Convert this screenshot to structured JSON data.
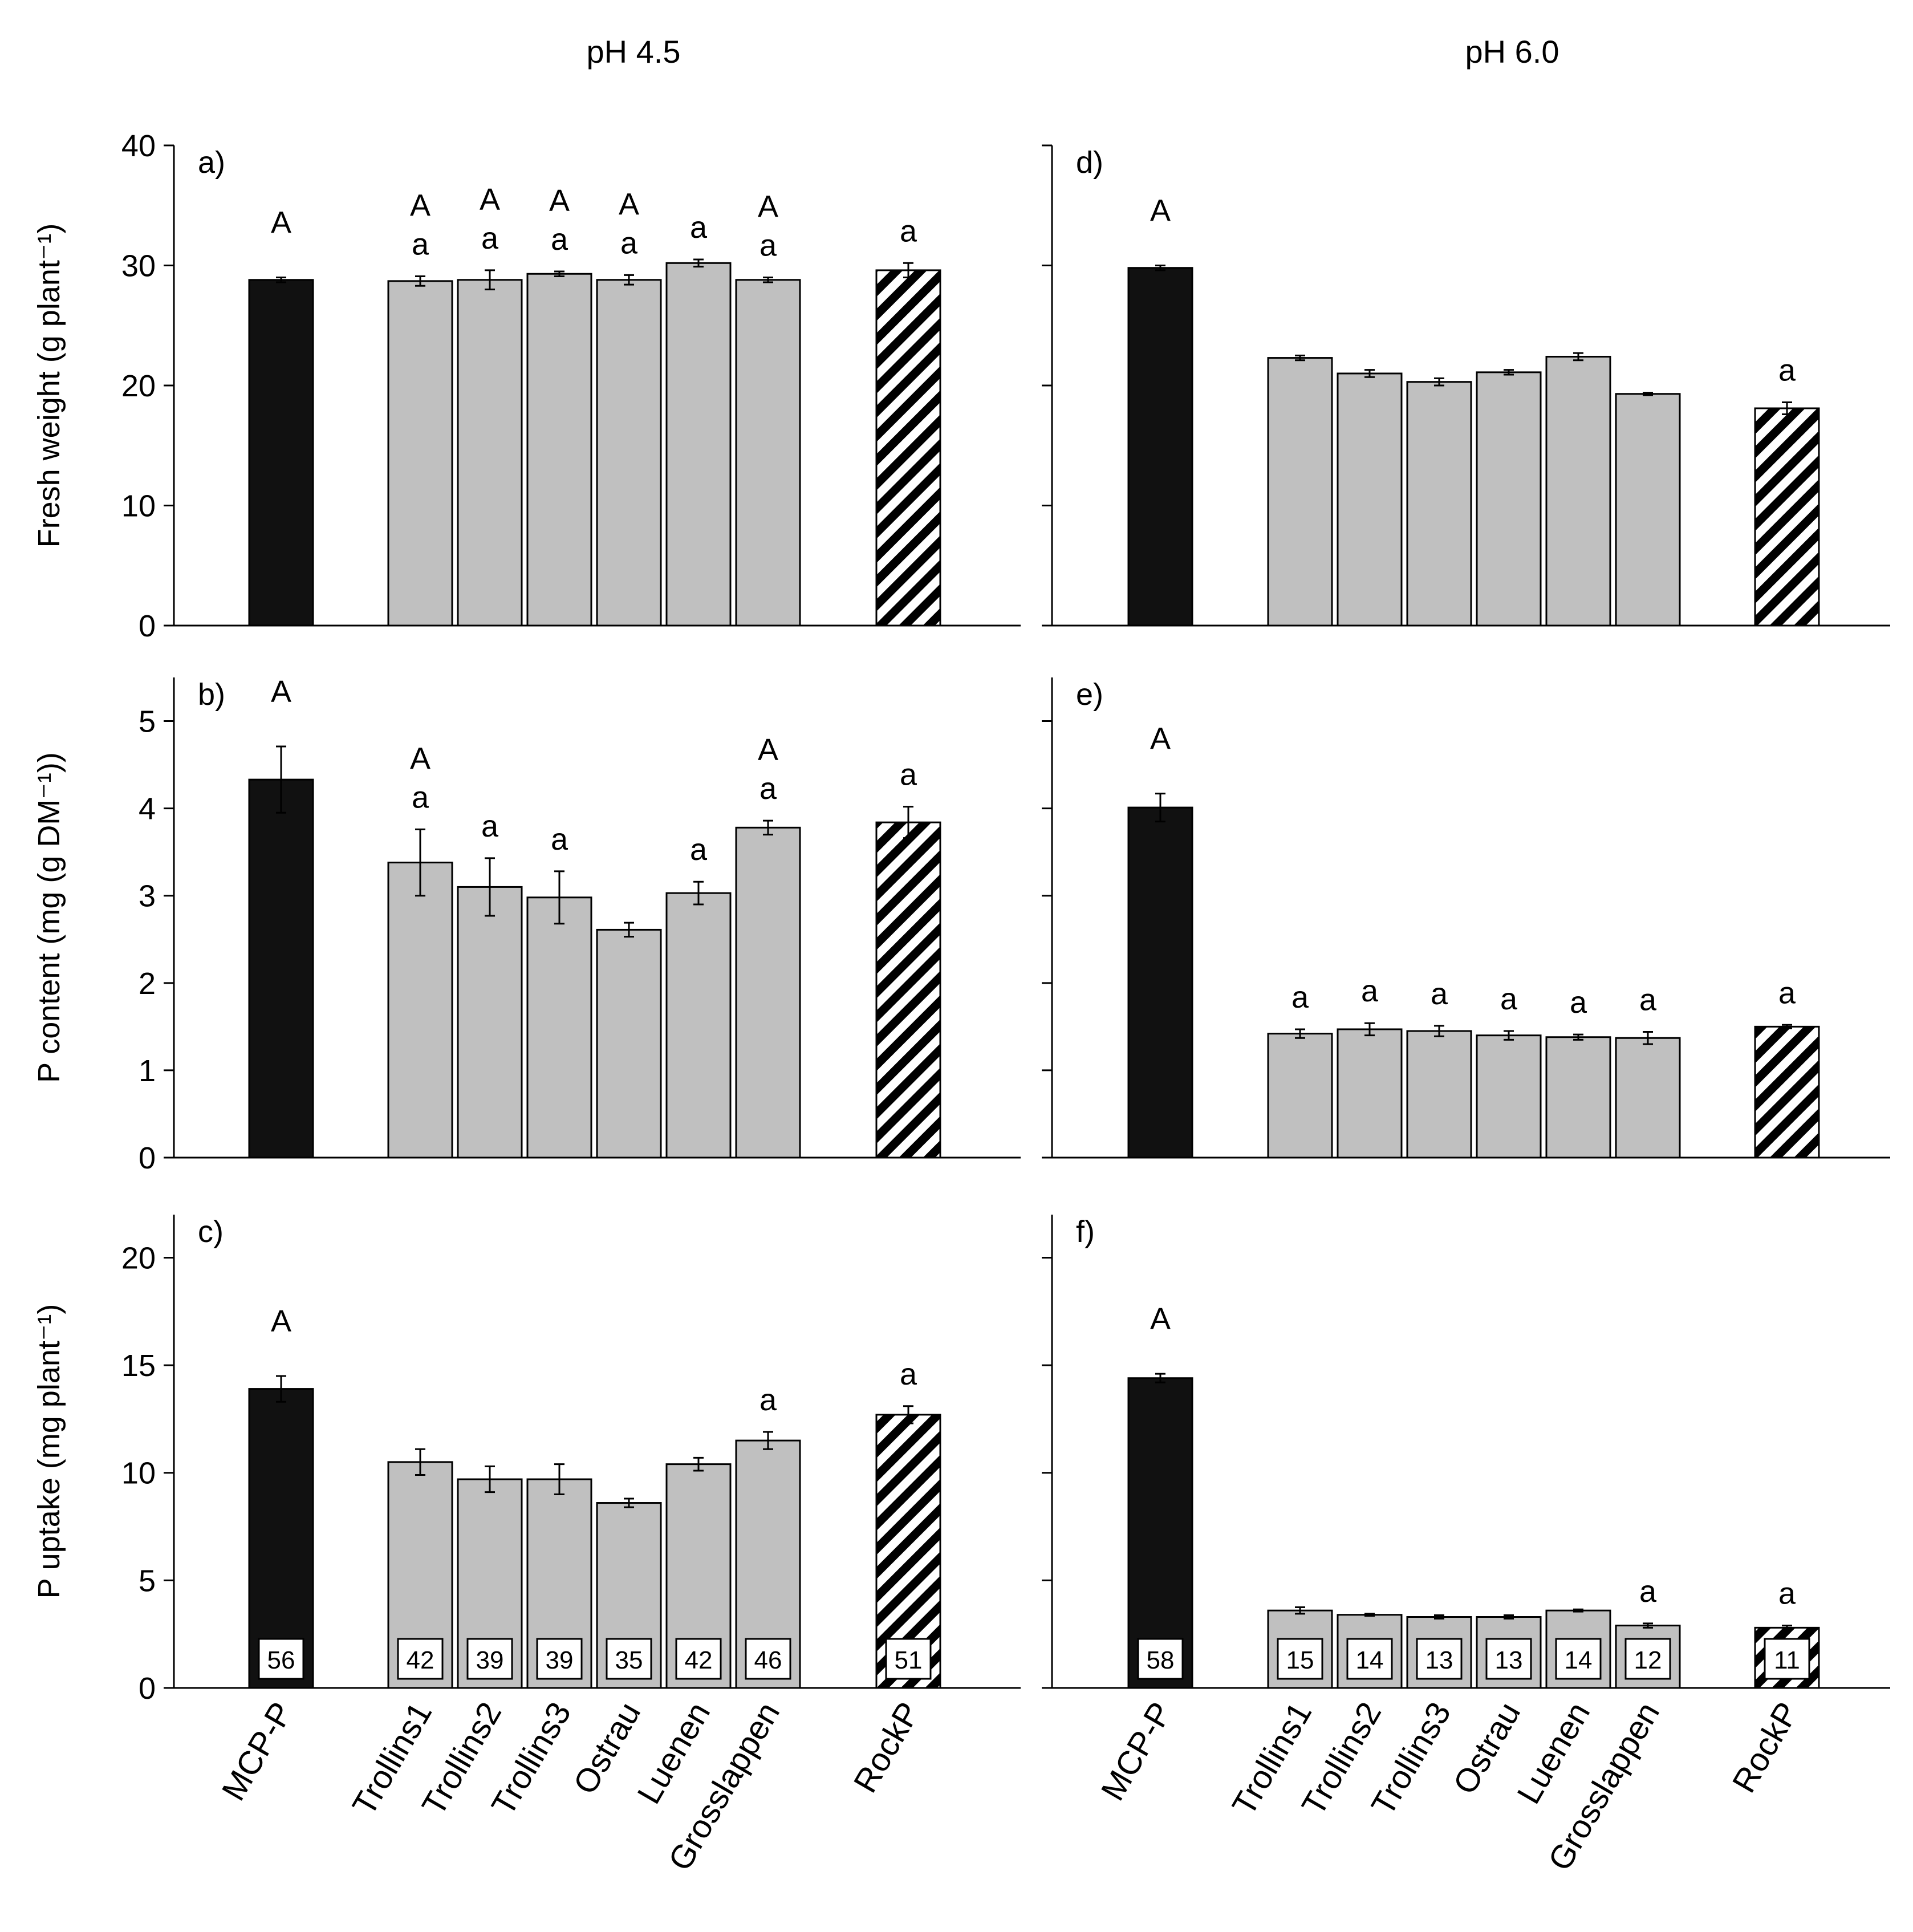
{
  "figure": {
    "column_titles": [
      "pH 4.5",
      "pH 6.0"
    ],
    "row_ylabels": [
      "Fresh weight (g plant⁻¹)",
      "P content (mg (g DM⁻¹))",
      "P uptake  (mg plant⁻¹)"
    ],
    "categories": [
      "MCP-P",
      "Trollins1",
      "Trollins2",
      "Trollins3",
      "Ostrau",
      "Luenen",
      "Grosslappen",
      "RockP"
    ],
    "bar_styles": [
      "black",
      "gray",
      "gray",
      "gray",
      "gray",
      "gray",
      "gray",
      "hatched"
    ],
    "colors": {
      "black": "#111111",
      "gray": "#c0c0c0",
      "hatch": "#000000",
      "axis": "#000000"
    }
  },
  "chart_data": [
    {
      "panel": "a)",
      "type": "bar",
      "ph": "pH 4.5",
      "ylabel": "Fresh weight (g plant⁻¹)",
      "ylim": [
        0,
        40
      ],
      "yticks": [
        0,
        10,
        20,
        30,
        40
      ],
      "show_tick_labels": true,
      "categories": [
        "MCP-P",
        "Trollins1",
        "Trollins2",
        "Trollins3",
        "Ostrau",
        "Luenen",
        "Grosslappen",
        "RockP"
      ],
      "values": [
        28.8,
        28.7,
        28.8,
        29.3,
        28.8,
        30.2,
        28.8,
        29.6
      ],
      "errors": [
        0.2,
        0.4,
        0.8,
        0.2,
        0.4,
        0.3,
        0.2,
        0.6
      ],
      "upper_letters": [
        "A",
        "A",
        "A",
        "A",
        "A",
        "",
        "A",
        ""
      ],
      "lower_letters": [
        "",
        "a",
        "a",
        "a",
        "a",
        "a",
        "a",
        "a"
      ],
      "inbar_values": []
    },
    {
      "panel": "b)",
      "type": "bar",
      "ph": "pH 4.5",
      "ylabel": "P content (mg (g DM⁻¹))",
      "ylim": [
        0,
        5.5
      ],
      "yticks": [
        0,
        1,
        2,
        3,
        4,
        5
      ],
      "show_tick_labels": true,
      "categories": [
        "MCP-P",
        "Trollins1",
        "Trollins2",
        "Trollins3",
        "Ostrau",
        "Luenen",
        "Grosslappen",
        "RockP"
      ],
      "values": [
        4.33,
        3.38,
        3.1,
        2.98,
        2.61,
        3.03,
        3.78,
        3.84
      ],
      "errors": [
        0.38,
        0.38,
        0.33,
        0.3,
        0.08,
        0.13,
        0.08,
        0.18
      ],
      "upper_letters": [
        "A",
        "A",
        "",
        "",
        "",
        "",
        "A",
        ""
      ],
      "lower_letters": [
        "",
        "a",
        "a",
        "a",
        "",
        "a",
        "a",
        "a"
      ],
      "inbar_values": []
    },
    {
      "panel": "c)",
      "type": "bar",
      "ph": "pH 4.5",
      "ylabel": "P uptake  (mg plant⁻¹)",
      "ylim": [
        0,
        22
      ],
      "yticks": [
        0,
        5,
        10,
        15,
        20
      ],
      "show_tick_labels": true,
      "categories": [
        "MCP-P",
        "Trollins1",
        "Trollins2",
        "Trollins3",
        "Ostrau",
        "Luenen",
        "Grosslappen",
        "RockP"
      ],
      "values": [
        13.9,
        10.5,
        9.7,
        9.7,
        8.6,
        10.4,
        11.5,
        12.7
      ],
      "errors": [
        0.6,
        0.6,
        0.6,
        0.7,
        0.2,
        0.3,
        0.4,
        0.4
      ],
      "upper_letters": [
        "A",
        "",
        "",
        "",
        "",
        "",
        "",
        ""
      ],
      "lower_letters": [
        "",
        "",
        "",
        "",
        "",
        "",
        "a",
        "a"
      ],
      "inbar_values": [
        "56",
        "42",
        "39",
        "39",
        "35",
        "42",
        "46",
        "51"
      ]
    },
    {
      "panel": "d)",
      "type": "bar",
      "ph": "pH 6.0",
      "ylabel": "",
      "ylim": [
        0,
        40
      ],
      "yticks": [
        0,
        10,
        20,
        30,
        40
      ],
      "show_tick_labels": false,
      "categories": [
        "MCP-P",
        "Trollins1",
        "Trollins2",
        "Trollins3",
        "Ostrau",
        "Luenen",
        "Grosslappen",
        "RockP"
      ],
      "values": [
        29.8,
        22.3,
        21.0,
        20.3,
        21.1,
        22.4,
        19.3,
        18.1
      ],
      "errors": [
        0.2,
        0.2,
        0.3,
        0.3,
        0.2,
        0.3,
        0.1,
        0.5
      ],
      "upper_letters": [
        "A",
        "",
        "",
        "",
        "",
        "",
        "",
        ""
      ],
      "lower_letters": [
        "",
        "",
        "",
        "",
        "",
        "",
        "",
        "a"
      ],
      "inbar_values": []
    },
    {
      "panel": "e)",
      "type": "bar",
      "ph": "pH 6.0",
      "ylabel": "",
      "ylim": [
        0,
        5.5
      ],
      "yticks": [
        0,
        1,
        2,
        3,
        4,
        5
      ],
      "show_tick_labels": false,
      "categories": [
        "MCP-P",
        "Trollins1",
        "Trollins2",
        "Trollins3",
        "Ostrau",
        "Luenen",
        "Grosslappen",
        "RockP"
      ],
      "values": [
        4.01,
        1.42,
        1.47,
        1.45,
        1.4,
        1.38,
        1.37,
        1.5
      ],
      "errors": [
        0.16,
        0.05,
        0.07,
        0.06,
        0.05,
        0.03,
        0.07,
        0.02
      ],
      "upper_letters": [
        "A",
        "",
        "",
        "",
        "",
        "",
        "",
        ""
      ],
      "lower_letters": [
        "",
        "a",
        "a",
        "a",
        "a",
        "a",
        "a",
        "a"
      ],
      "inbar_values": []
    },
    {
      "panel": "f)",
      "type": "bar",
      "ph": "pH 6.0",
      "ylabel": "",
      "ylim": [
        0,
        22
      ],
      "yticks": [
        0,
        5,
        10,
        15,
        20
      ],
      "show_tick_labels": false,
      "categories": [
        "MCP-P",
        "Trollins1",
        "Trollins2",
        "Trollins3",
        "Ostrau",
        "Luenen",
        "Grosslappen",
        "RockP"
      ],
      "values": [
        14.4,
        3.6,
        3.4,
        3.3,
        3.3,
        3.6,
        2.9,
        2.8
      ],
      "errors": [
        0.2,
        0.15,
        0.05,
        0.08,
        0.08,
        0.05,
        0.1,
        0.1
      ],
      "upper_letters": [
        "A",
        "",
        "",
        "",
        "",
        "",
        "",
        ""
      ],
      "lower_letters": [
        "",
        "",
        "",
        "",
        "",
        "",
        "a",
        "a"
      ],
      "inbar_values": [
        "58",
        "15",
        "14",
        "13",
        "13",
        "14",
        "12",
        "11"
      ]
    }
  ]
}
